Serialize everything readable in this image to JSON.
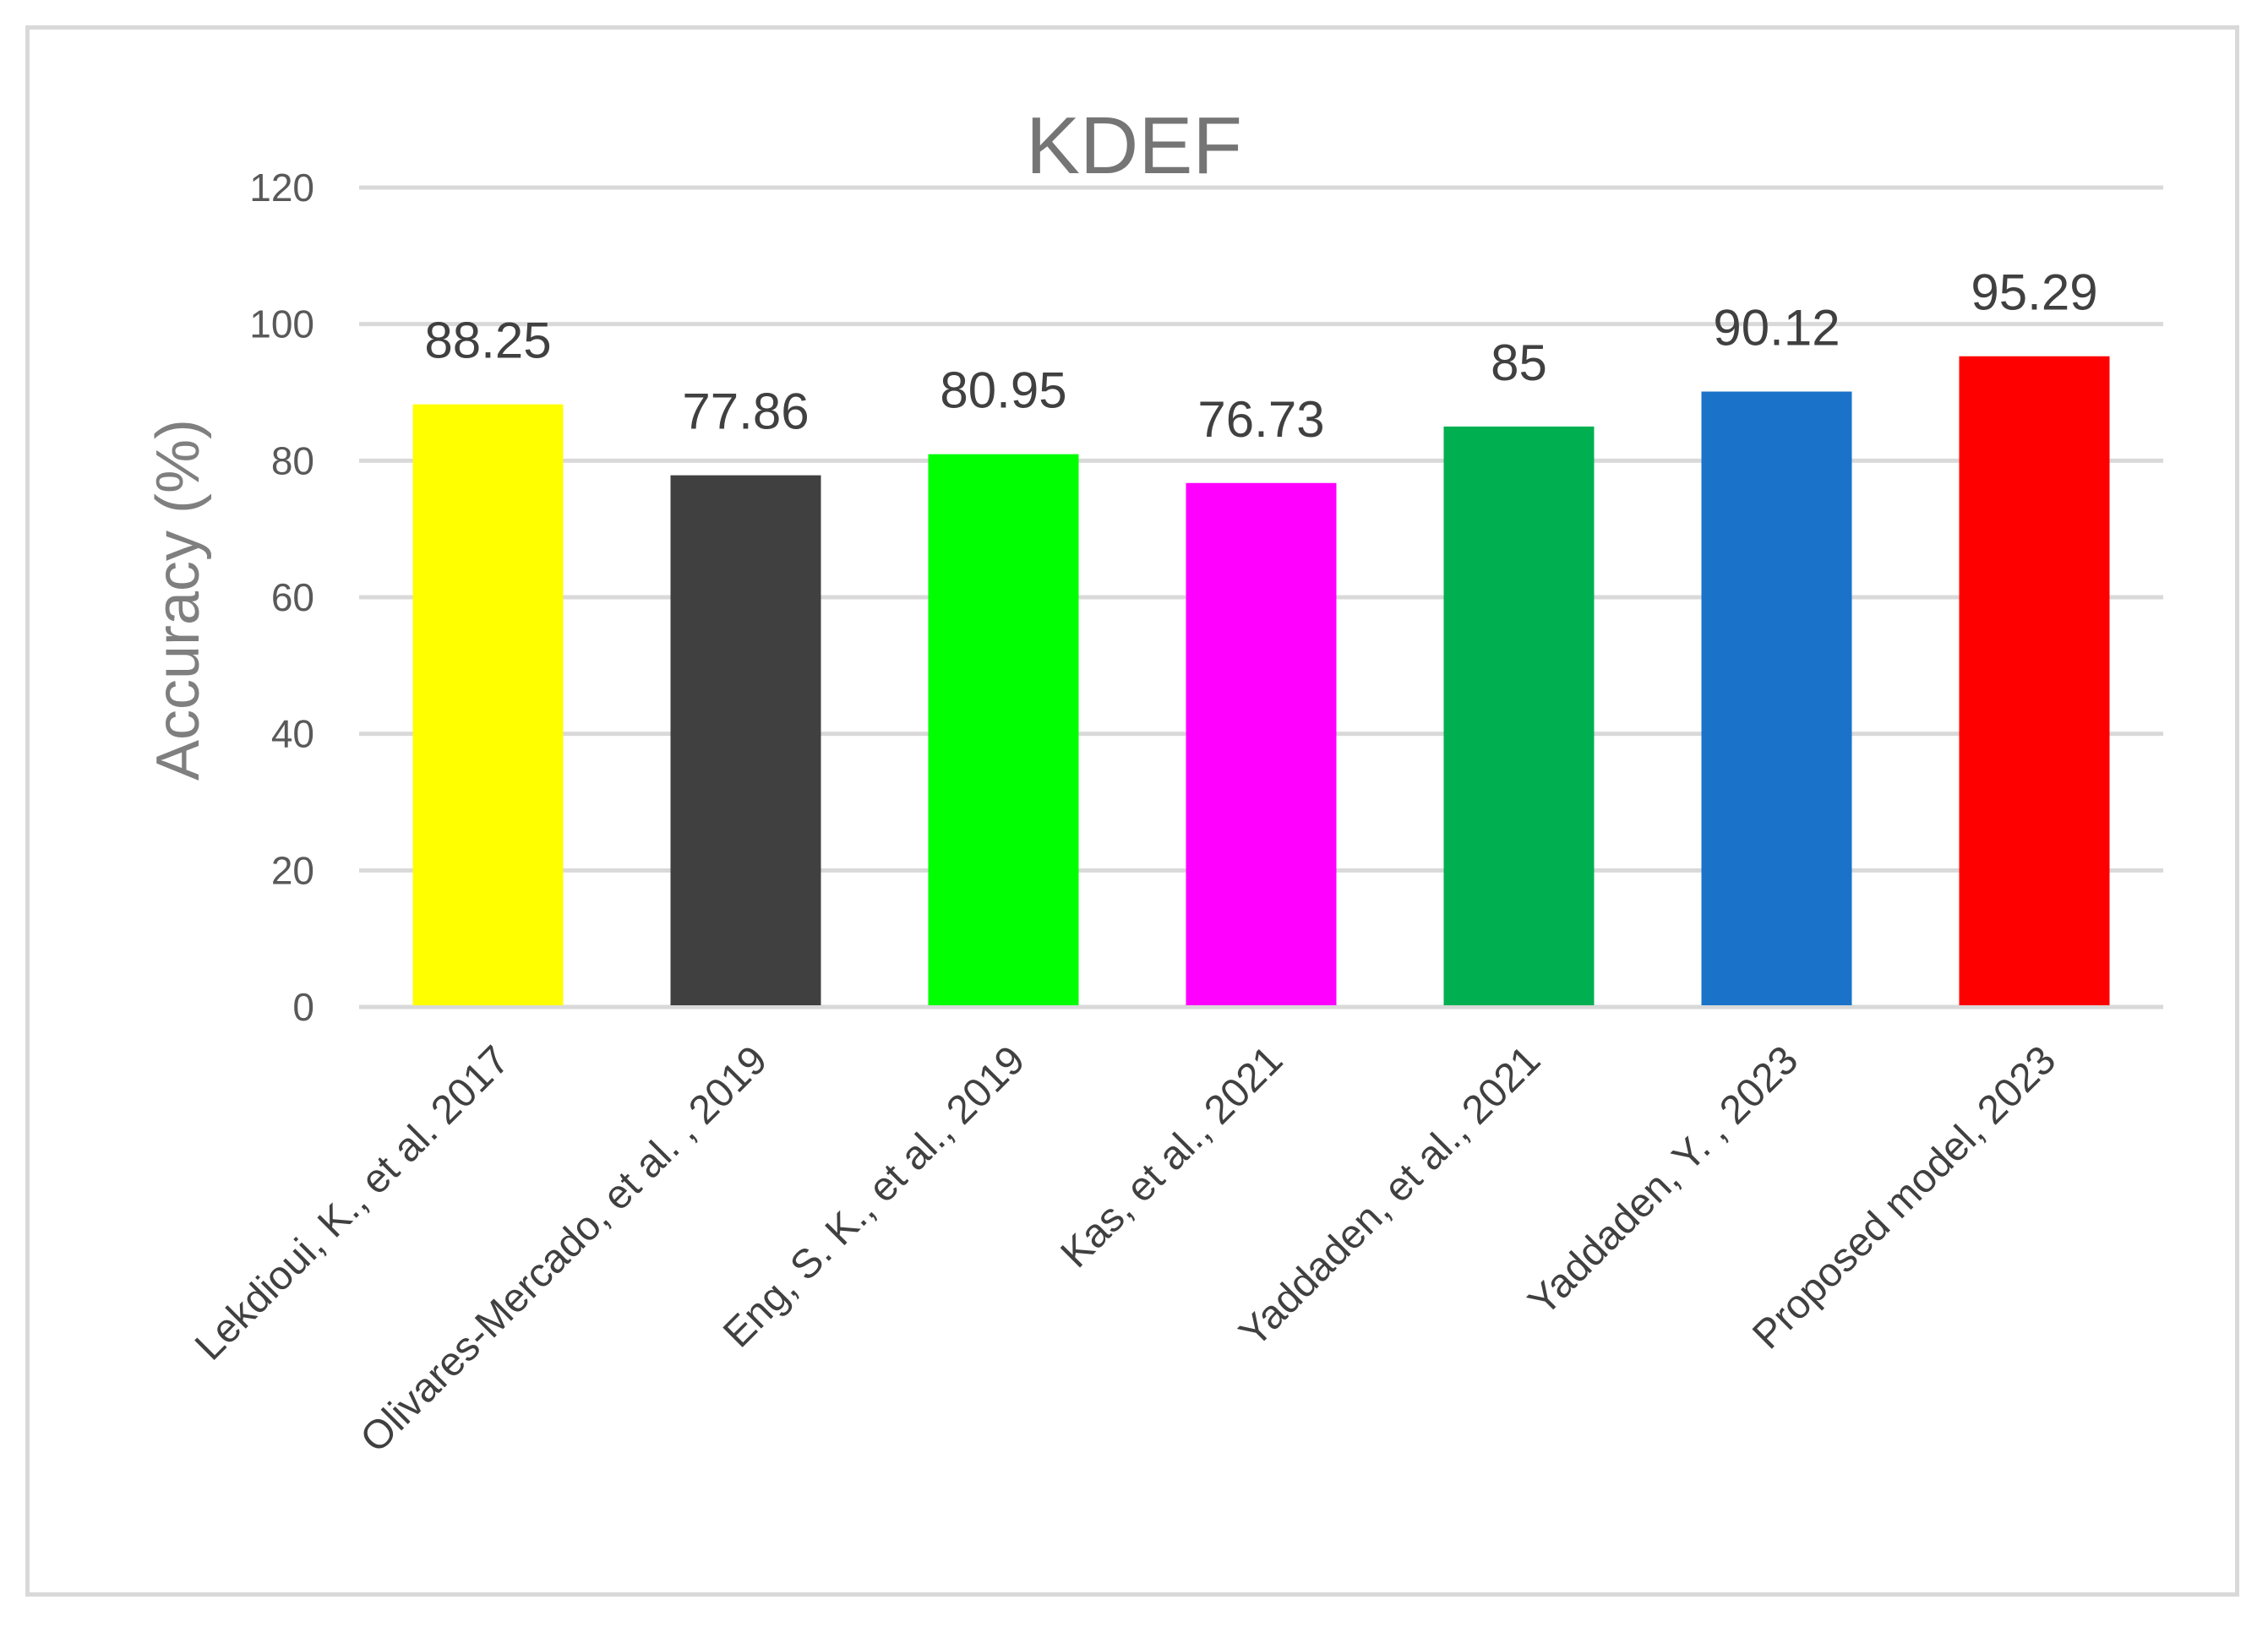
{
  "chart_data": {
    "type": "bar",
    "title": "KDEF",
    "xlabel": "",
    "ylabel": "Accuracy (%)",
    "ylim": [
      0,
      120
    ],
    "yticks": [
      0,
      20,
      40,
      60,
      80,
      100,
      120
    ],
    "grid": true,
    "legend": "none",
    "categories": [
      "Lekdioui, K., et al. 2017",
      "Olivares-Mercado, et al. , 2019",
      "Eng, S. K., et al., 2019",
      "Kas, et al., 2021",
      "Yaddaden, et al., 2021",
      "Yaddaden, Y. , 2023",
      "Proposed model, 2023"
    ],
    "values": [
      88.25,
      77.86,
      80.95,
      76.73,
      85,
      90.12,
      95.29
    ],
    "data_labels": [
      "88.25",
      "77.86",
      "80.95",
      "76.73",
      "85",
      "90.12",
      "95.29"
    ],
    "colors": [
      "#ffff00",
      "#404040",
      "#00ff00",
      "#ff00ff",
      "#00b050",
      "#1a73c8",
      "#ff0000"
    ],
    "gridline_color": "#d9d9d9"
  }
}
